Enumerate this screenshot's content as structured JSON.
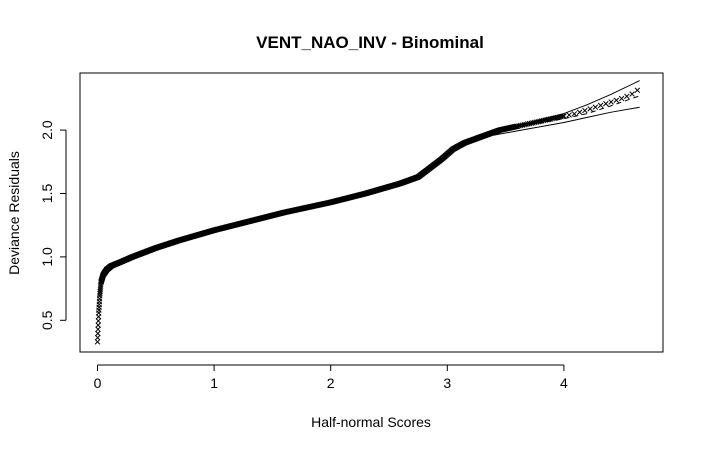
{
  "chart_data": {
    "type": "scatter",
    "title": "VENT_NAO_INV - Binominal",
    "xlabel": "Half-normal Scores",
    "ylabel": "Deviance Residuals",
    "xlim": [
      -0.15,
      4.85
    ],
    "ylim": [
      0.25,
      2.45
    ],
    "x_ticks": [
      0,
      1,
      2,
      3,
      4
    ],
    "x_tick_labels": [
      "0",
      "1",
      "2",
      "3",
      "4"
    ],
    "y_ticks": [
      0.5,
      1.0,
      1.5,
      2.0
    ],
    "y_tick_labels": [
      "0.5",
      "1.0",
      "1.5",
      "2.0"
    ],
    "grid": false,
    "legend": "none",
    "series": [
      {
        "role": "residuals",
        "marker": "x",
        "x": [
          0.0,
          0.01,
          0.02,
          0.03,
          0.05,
          0.08,
          0.12,
          0.2,
          0.3,
          0.5,
          0.7,
          1.0,
          1.3,
          1.6,
          2.0,
          2.3,
          2.6,
          2.75,
          2.85,
          2.95,
          3.05,
          3.15,
          3.3,
          3.45,
          3.6,
          3.75,
          3.9,
          4.0,
          4.1,
          4.2,
          4.3,
          4.4,
          4.5,
          4.6,
          4.65
        ],
        "y": [
          0.33,
          0.55,
          0.7,
          0.8,
          0.86,
          0.9,
          0.93,
          0.96,
          1.0,
          1.07,
          1.13,
          1.21,
          1.28,
          1.35,
          1.43,
          1.5,
          1.58,
          1.63,
          1.7,
          1.77,
          1.85,
          1.9,
          1.95,
          2.0,
          2.03,
          2.06,
          2.09,
          2.11,
          2.13,
          2.16,
          2.19,
          2.22,
          2.25,
          2.29,
          2.33
        ]
      },
      {
        "role": "envelope-median",
        "style": "dashed",
        "x": [
          3.4,
          3.7,
          4.0,
          4.2,
          4.4,
          4.65
        ],
        "y": [
          1.98,
          2.04,
          2.09,
          2.13,
          2.19,
          2.27
        ]
      },
      {
        "role": "envelope-upper",
        "style": "solid",
        "x": [
          3.4,
          3.7,
          4.0,
          4.2,
          4.4,
          4.65
        ],
        "y": [
          1.99,
          2.06,
          2.13,
          2.2,
          2.28,
          2.39
        ]
      },
      {
        "role": "envelope-lower",
        "style": "solid",
        "x": [
          3.4,
          3.7,
          4.0,
          4.2,
          4.4,
          4.65
        ],
        "y": [
          1.96,
          2.01,
          2.06,
          2.1,
          2.14,
          2.18
        ]
      }
    ]
  }
}
